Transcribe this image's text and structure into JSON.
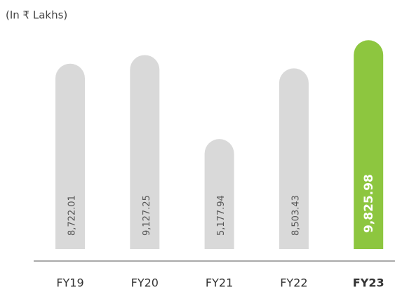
{
  "chart_data": {
    "type": "bar",
    "subtitle": "(In ₹ Lakhs)",
    "categories": [
      "FY19",
      "FY20",
      "FY21",
      "FY22",
      "FY23"
    ],
    "values": [
      8722.01,
      9127.25,
      5177.94,
      8503.43,
      9825.98
    ],
    "value_labels": [
      "8,722.01",
      "9,127.25",
      "5,177.94",
      "8,503.43",
      "9,825.98"
    ],
    "colors": [
      "#d9d9d9",
      "#d9d9d9",
      "#d9d9d9",
      "#d9d9d9",
      "#8dc63f"
    ],
    "ylim": [
      0,
      10000
    ]
  }
}
